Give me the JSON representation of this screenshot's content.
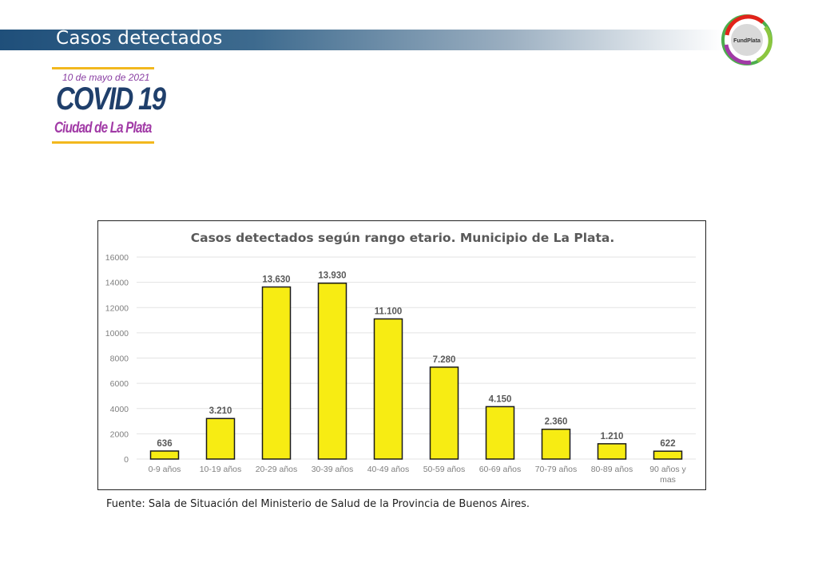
{
  "header": {
    "title": "Casos detectados"
  },
  "brand": {
    "date": "10 de mayo de 2021",
    "title": "COVID 19",
    "subtitle": "Ciudad de La Plata"
  },
  "logo": {
    "text": "FundPlata"
  },
  "source": "Fuente: Sala de Situación del Ministerio de Salud de la Provincia de Buenos Aires.",
  "colors": {
    "bar": "#f7ec13",
    "bar_stroke": "#1a1a1a",
    "title": "#595959",
    "axis_text": "#7f7f7f",
    "grid": "#e3e3e3",
    "banner": "#1f4f7a"
  },
  "chart_data": {
    "type": "bar",
    "title": "Casos detectados según rango etario. Municipio de La Plata.",
    "xlabel": "",
    "ylabel": "",
    "ylim": [
      0,
      16000
    ],
    "yticks": [
      0,
      2000,
      4000,
      6000,
      8000,
      10000,
      12000,
      14000,
      16000
    ],
    "grid": true,
    "categories": [
      "0-9 años",
      "10-19 años",
      "20-29 años",
      "30-39 años",
      "40-49 años",
      "50-59 años",
      "60-69 años",
      "70-79 años",
      "80-89 años",
      "90 años y mas"
    ],
    "values": [
      636,
      3210,
      13630,
      13930,
      11100,
      7280,
      4150,
      2360,
      1210,
      622
    ],
    "data_labels": [
      "636",
      "3.210",
      "13.630",
      "13.930",
      "11.100",
      "7.280",
      "4.150",
      "2.360",
      "1.210",
      "622"
    ]
  }
}
